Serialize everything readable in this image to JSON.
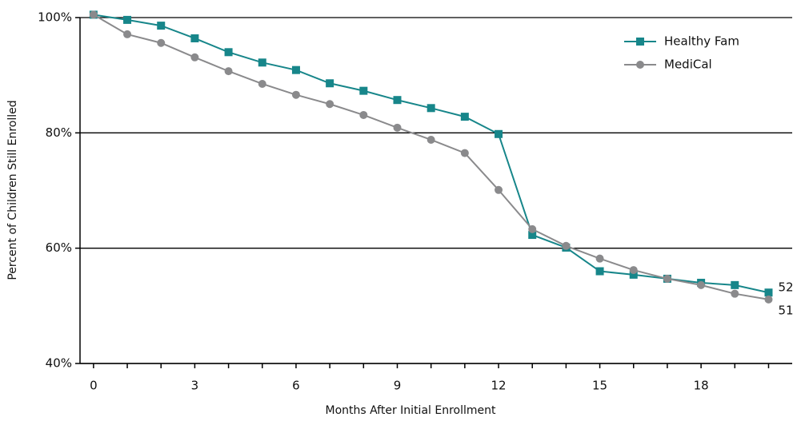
{
  "chart_data": {
    "type": "line",
    "y_label": "Percent of Children Still Enrolled",
    "x_label": "Months After Initial Enrollment",
    "x": [
      0,
      1,
      2,
      3,
      4,
      5,
      6,
      7,
      8,
      9,
      10,
      11,
      12,
      13,
      14,
      15,
      16,
      17,
      18,
      19,
      20
    ],
    "series": [
      {
        "name": "Healthy Fam",
        "color": "#17868a",
        "marker": "square",
        "values": [
          100.5,
          99.6,
          98.6,
          96.4,
          94.0,
          92.2,
          90.9,
          88.6,
          87.3,
          85.7,
          84.3,
          82.8,
          79.8,
          62.3,
          60.1,
          56.0,
          55.4,
          54.7,
          54.0,
          53.6,
          52.3
        ],
        "value_labels": [
          null,
          null,
          null,
          null,
          null,
          null,
          null,
          null,
          null,
          null,
          null,
          null,
          null,
          null,
          null,
          null,
          null,
          null,
          null,
          null,
          "52"
        ]
      },
      {
        "name": "MediCal",
        "color": "#8a8a8c",
        "marker": "circle",
        "values": [
          100.5,
          97.1,
          95.6,
          93.1,
          90.7,
          88.5,
          86.6,
          85.0,
          83.1,
          80.9,
          78.8,
          76.5,
          70.1,
          63.3,
          60.4,
          58.2,
          56.2,
          54.7,
          53.6,
          52.1,
          51.1
        ],
        "value_labels": [
          null,
          null,
          null,
          null,
          null,
          null,
          null,
          null,
          null,
          null,
          null,
          null,
          null,
          null,
          null,
          null,
          null,
          null,
          null,
          null,
          "51"
        ]
      }
    ],
    "xlim": [
      -0.4,
      20.7
    ],
    "xticks": [
      0,
      3,
      6,
      9,
      12,
      15,
      18
    ],
    "ylim": [
      40,
      100
    ],
    "yticks": [
      {
        "value": 40,
        "label": "40%"
      },
      {
        "value": 60,
        "label": "60%"
      },
      {
        "value": 80,
        "label": "80%"
      },
      {
        "value": 100,
        "label": "100%"
      }
    ],
    "grid": true,
    "legend": "upper right"
  }
}
